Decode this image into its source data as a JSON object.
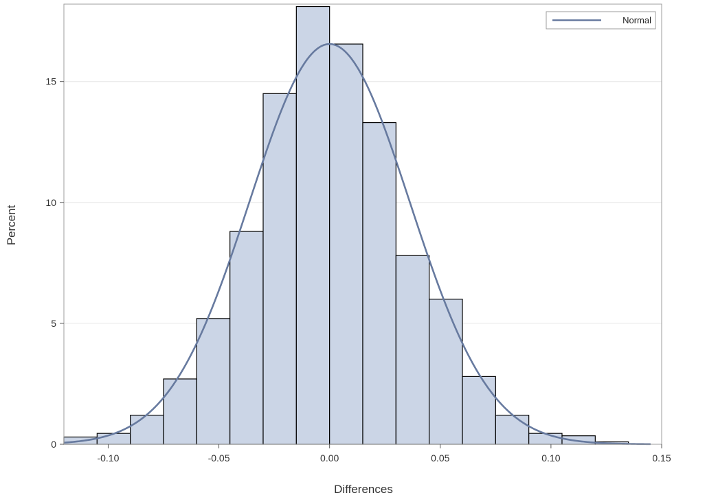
{
  "chart_data": {
    "type": "bar",
    "xlabel": "Differences",
    "ylabel": "Percent",
    "xlim": [
      -0.12,
      0.15
    ],
    "ylim": [
      0,
      18.2
    ],
    "x_ticks": [
      "-0.10",
      "-0.05",
      "0.00",
      "0.05",
      "0.10",
      "0.15"
    ],
    "x_tick_values": [
      -0.1,
      -0.05,
      0.0,
      0.05,
      0.1,
      0.15
    ],
    "y_ticks": [
      "0",
      "5",
      "10",
      "15"
    ],
    "y_tick_values": [
      0,
      5,
      10,
      15
    ],
    "bin_width": 0.015,
    "bin_centers": [
      -0.1125,
      -0.0975,
      -0.0825,
      -0.0675,
      -0.0525,
      -0.0375,
      -0.0225,
      -0.0075,
      0.0075,
      0.0225,
      0.0375,
      0.0525,
      0.0675,
      0.0825,
      0.0975,
      0.1125,
      0.1275
    ],
    "values": [
      0.3,
      0.45,
      1.2,
      2.7,
      5.2,
      8.8,
      14.5,
      18.1,
      16.55,
      13.3,
      7.8,
      6.0,
      2.8,
      1.2,
      0.45,
      0.35,
      0.1
    ],
    "grid": "horizontal",
    "legend_position": "top-right",
    "series": [
      {
        "name": "Normal",
        "type": "line",
        "mean": 0.0,
        "peak": 16.55
      }
    ],
    "colors": {
      "bar_fill": "#cbd5e6",
      "bar_stroke": "#000000",
      "curve": "#677a9f",
      "gridline": "#e6e6e6",
      "frame": "#9e9e9e"
    }
  }
}
